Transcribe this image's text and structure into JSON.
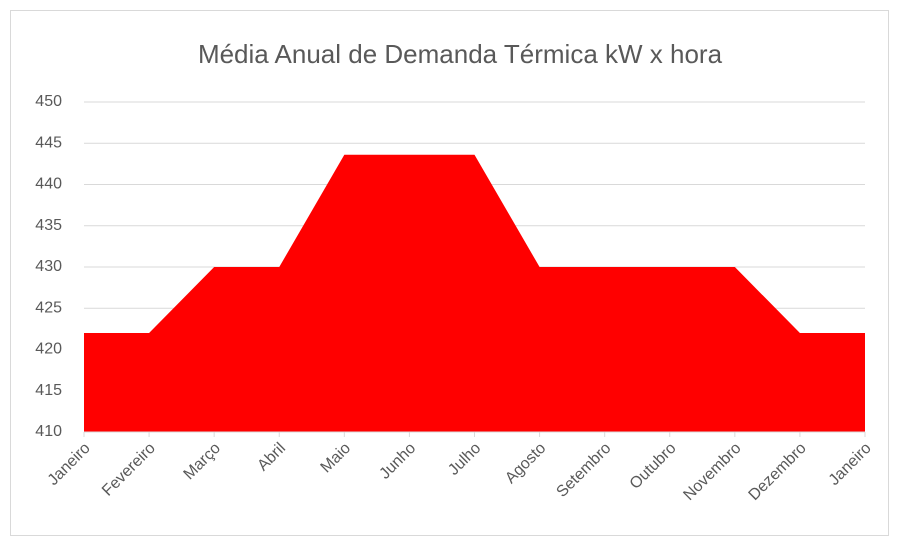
{
  "chart_data": {
    "type": "area",
    "title": "Média Anual de Demanda Térmica kW x hora",
    "categories": [
      "Janeiro",
      "Fevereiro",
      "Março",
      "Abril",
      "Maio",
      "Junho",
      "Julho",
      "Agosto",
      "Setembro",
      "Outubro",
      "Novembro",
      "Dezembro",
      "Janeiro"
    ],
    "values": [
      422,
      422,
      430,
      430,
      443.6,
      443.6,
      443.6,
      430,
      430,
      430,
      430,
      422,
      422
    ],
    "color": "#ff0000",
    "ylim": [
      410,
      450
    ],
    "yticks": [
      410,
      415,
      420,
      425,
      430,
      435,
      440,
      445,
      450
    ],
    "grid": true
  }
}
